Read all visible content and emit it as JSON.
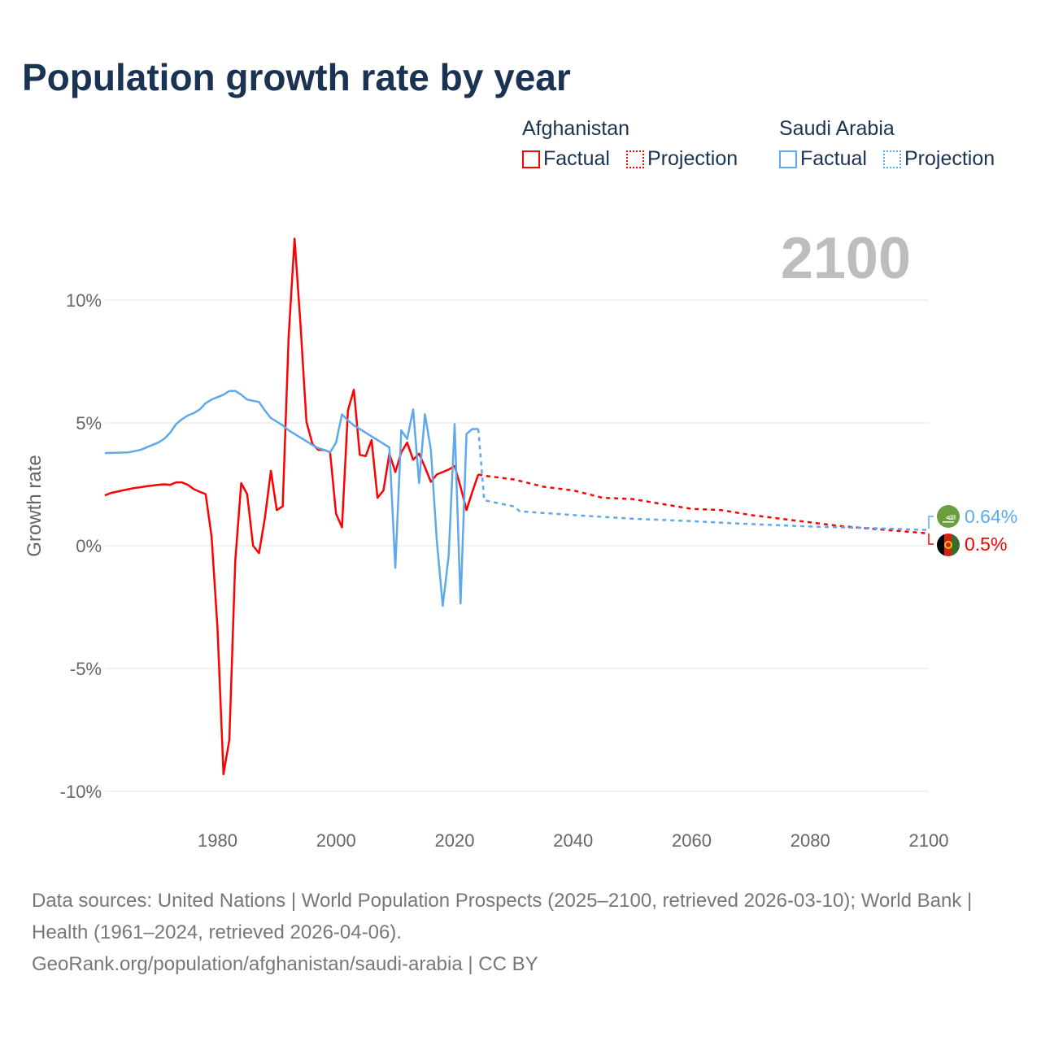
{
  "title": "Population growth rate by year",
  "legend": {
    "groups": [
      {
        "name": "Afghanistan",
        "factual": "Factual",
        "projection": "Projection",
        "color": "#ff0000"
      },
      {
        "name": "Saudi Arabia",
        "factual": "Factual",
        "projection": "Projection",
        "color": "#5ea8ec"
      }
    ]
  },
  "year_label": "2100",
  "end_labels": {
    "saudi": "0.64%",
    "afghanistan": "0.5%"
  },
  "footer": {
    "sources": "Data sources: United Nations | World Population Prospects (2025–2100, retrieved 2026-03-10); World Bank | Health (1961–2024, retrieved 2026-04-06).",
    "link": "GeoRank.org/population/afghanistan/saudi-arabia | CC BY"
  },
  "chart_data": {
    "type": "line",
    "title": "Population growth rate by year",
    "xlabel": "",
    "ylabel": "Growth rate",
    "xlim": [
      1961,
      2100
    ],
    "ylim": [
      -10,
      12.5
    ],
    "xticks": [
      1980,
      2000,
      2020,
      2040,
      2060,
      2080,
      2100
    ],
    "yticks": [
      {
        "v": 10,
        "label": "10%"
      },
      {
        "v": 5,
        "label": "5%"
      },
      {
        "v": 0,
        "label": "0%"
      },
      {
        "v": -5,
        "label": "-5%"
      },
      {
        "v": -10,
        "label": "-10%"
      }
    ],
    "series": [
      {
        "name": "Afghanistan Factual",
        "color": "#ff0000",
        "dashed": false,
        "x": [
          1961,
          1962,
          1963,
          1964,
          1965,
          1966,
          1967,
          1968,
          1969,
          1970,
          1971,
          1972,
          1973,
          1974,
          1975,
          1976,
          1977,
          1978,
          1979,
          1980,
          1981,
          1982,
          1983,
          1984,
          1985,
          1986,
          1987,
          1988,
          1989,
          1990,
          1991,
          1992,
          1993,
          1994,
          1995,
          1996,
          1997,
          1998,
          1999,
          2000,
          2001,
          2002,
          2003,
          2004,
          2005,
          2006,
          2007,
          2008,
          2009,
          2010,
          2011,
          2012,
          2013,
          2014,
          2015,
          2016,
          2017,
          2018,
          2019,
          2020,
          2021,
          2022,
          2023,
          2024
        ],
        "y": [
          2.05,
          2.15,
          2.2,
          2.25,
          2.3,
          2.35,
          2.38,
          2.42,
          2.45,
          2.48,
          2.5,
          2.48,
          2.58,
          2.58,
          2.48,
          2.3,
          2.2,
          2.1,
          0.36,
          -3.4,
          -9.3,
          -7.9,
          -0.6,
          2.55,
          2.1,
          0,
          -0.3,
          1.15,
          3.05,
          1.45,
          1.6,
          8.5,
          12.5,
          9,
          5.05,
          4.15,
          3.9,
          3.9,
          3.8,
          1.3,
          0.75,
          5.5,
          6.35,
          3.7,
          3.65,
          4.3,
          1.95,
          2.25,
          3.75,
          3.0,
          3.8,
          4.2,
          3.5,
          3.75,
          3.2,
          2.6,
          2.9,
          3.0,
          3.1,
          3.25,
          2.4,
          1.45,
          2.2,
          2.9
        ]
      },
      {
        "name": "Afghanistan Projection",
        "color": "#ff0000",
        "dashed": true,
        "x": [
          2024,
          2025,
          2030,
          2035,
          2040,
          2045,
          2050,
          2055,
          2060,
          2065,
          2070,
          2075,
          2080,
          2085,
          2090,
          2095,
          2100
        ],
        "y": [
          2.9,
          2.85,
          2.7,
          2.4,
          2.25,
          1.95,
          1.9,
          1.7,
          1.5,
          1.45,
          1.25,
          1.1,
          0.95,
          0.8,
          0.7,
          0.6,
          0.5
        ]
      },
      {
        "name": "Saudi Arabia Factual",
        "color": "#5ea8ec",
        "dashed": false,
        "x": [
          1961,
          1965,
          1966,
          1967,
          1968,
          1969,
          1970,
          1971,
          1972,
          1973,
          1974,
          1975,
          1976,
          1977,
          1978,
          1979,
          1980,
          1981,
          1982,
          1983,
          1984,
          1985,
          1986,
          1987,
          1988,
          1989,
          1990,
          1991,
          1992,
          1993,
          1994,
          1995,
          1996,
          1997,
          1998,
          1999,
          2000,
          2001,
          2002,
          2003,
          2004,
          2005,
          2006,
          2007,
          2008,
          2009,
          2010,
          2011,
          2012,
          2013,
          2014,
          2015,
          2016,
          2017,
          2018,
          2019,
          2020,
          2021,
          2022,
          2023,
          2024
        ],
        "y": [
          3.77,
          3.8,
          3.85,
          3.9,
          4.0,
          4.1,
          4.2,
          4.35,
          4.6,
          4.95,
          5.15,
          5.3,
          5.4,
          5.55,
          5.8,
          5.95,
          6.05,
          6.15,
          6.3,
          6.3,
          6.15,
          5.95,
          5.9,
          5.85,
          5.5,
          5.2,
          5.05,
          4.9,
          4.7,
          4.55,
          4.4,
          4.25,
          4.1,
          3.97,
          3.9,
          3.8,
          4.2,
          5.35,
          5.1,
          4.9,
          4.75,
          4.6,
          4.45,
          4.3,
          4.15,
          4.0,
          -0.9,
          4.7,
          4.35,
          5.55,
          2.55,
          5.35,
          3.9,
          0.2,
          -2.45,
          -0.4,
          4.95,
          -2.35,
          4.55,
          4.75,
          4.75
        ]
      },
      {
        "name": "Saudi Arabia Projection",
        "color": "#5ea8ec",
        "dashed": true,
        "x": [
          2024,
          2025,
          2030,
          2031,
          2040,
          2050,
          2060,
          2070,
          2080,
          2090,
          2100
        ],
        "y": [
          4.75,
          1.85,
          1.6,
          1.4,
          1.25,
          1.1,
          1.0,
          0.88,
          0.78,
          0.72,
          0.64
        ]
      }
    ],
    "grid": true,
    "legend_position": "top-right"
  }
}
